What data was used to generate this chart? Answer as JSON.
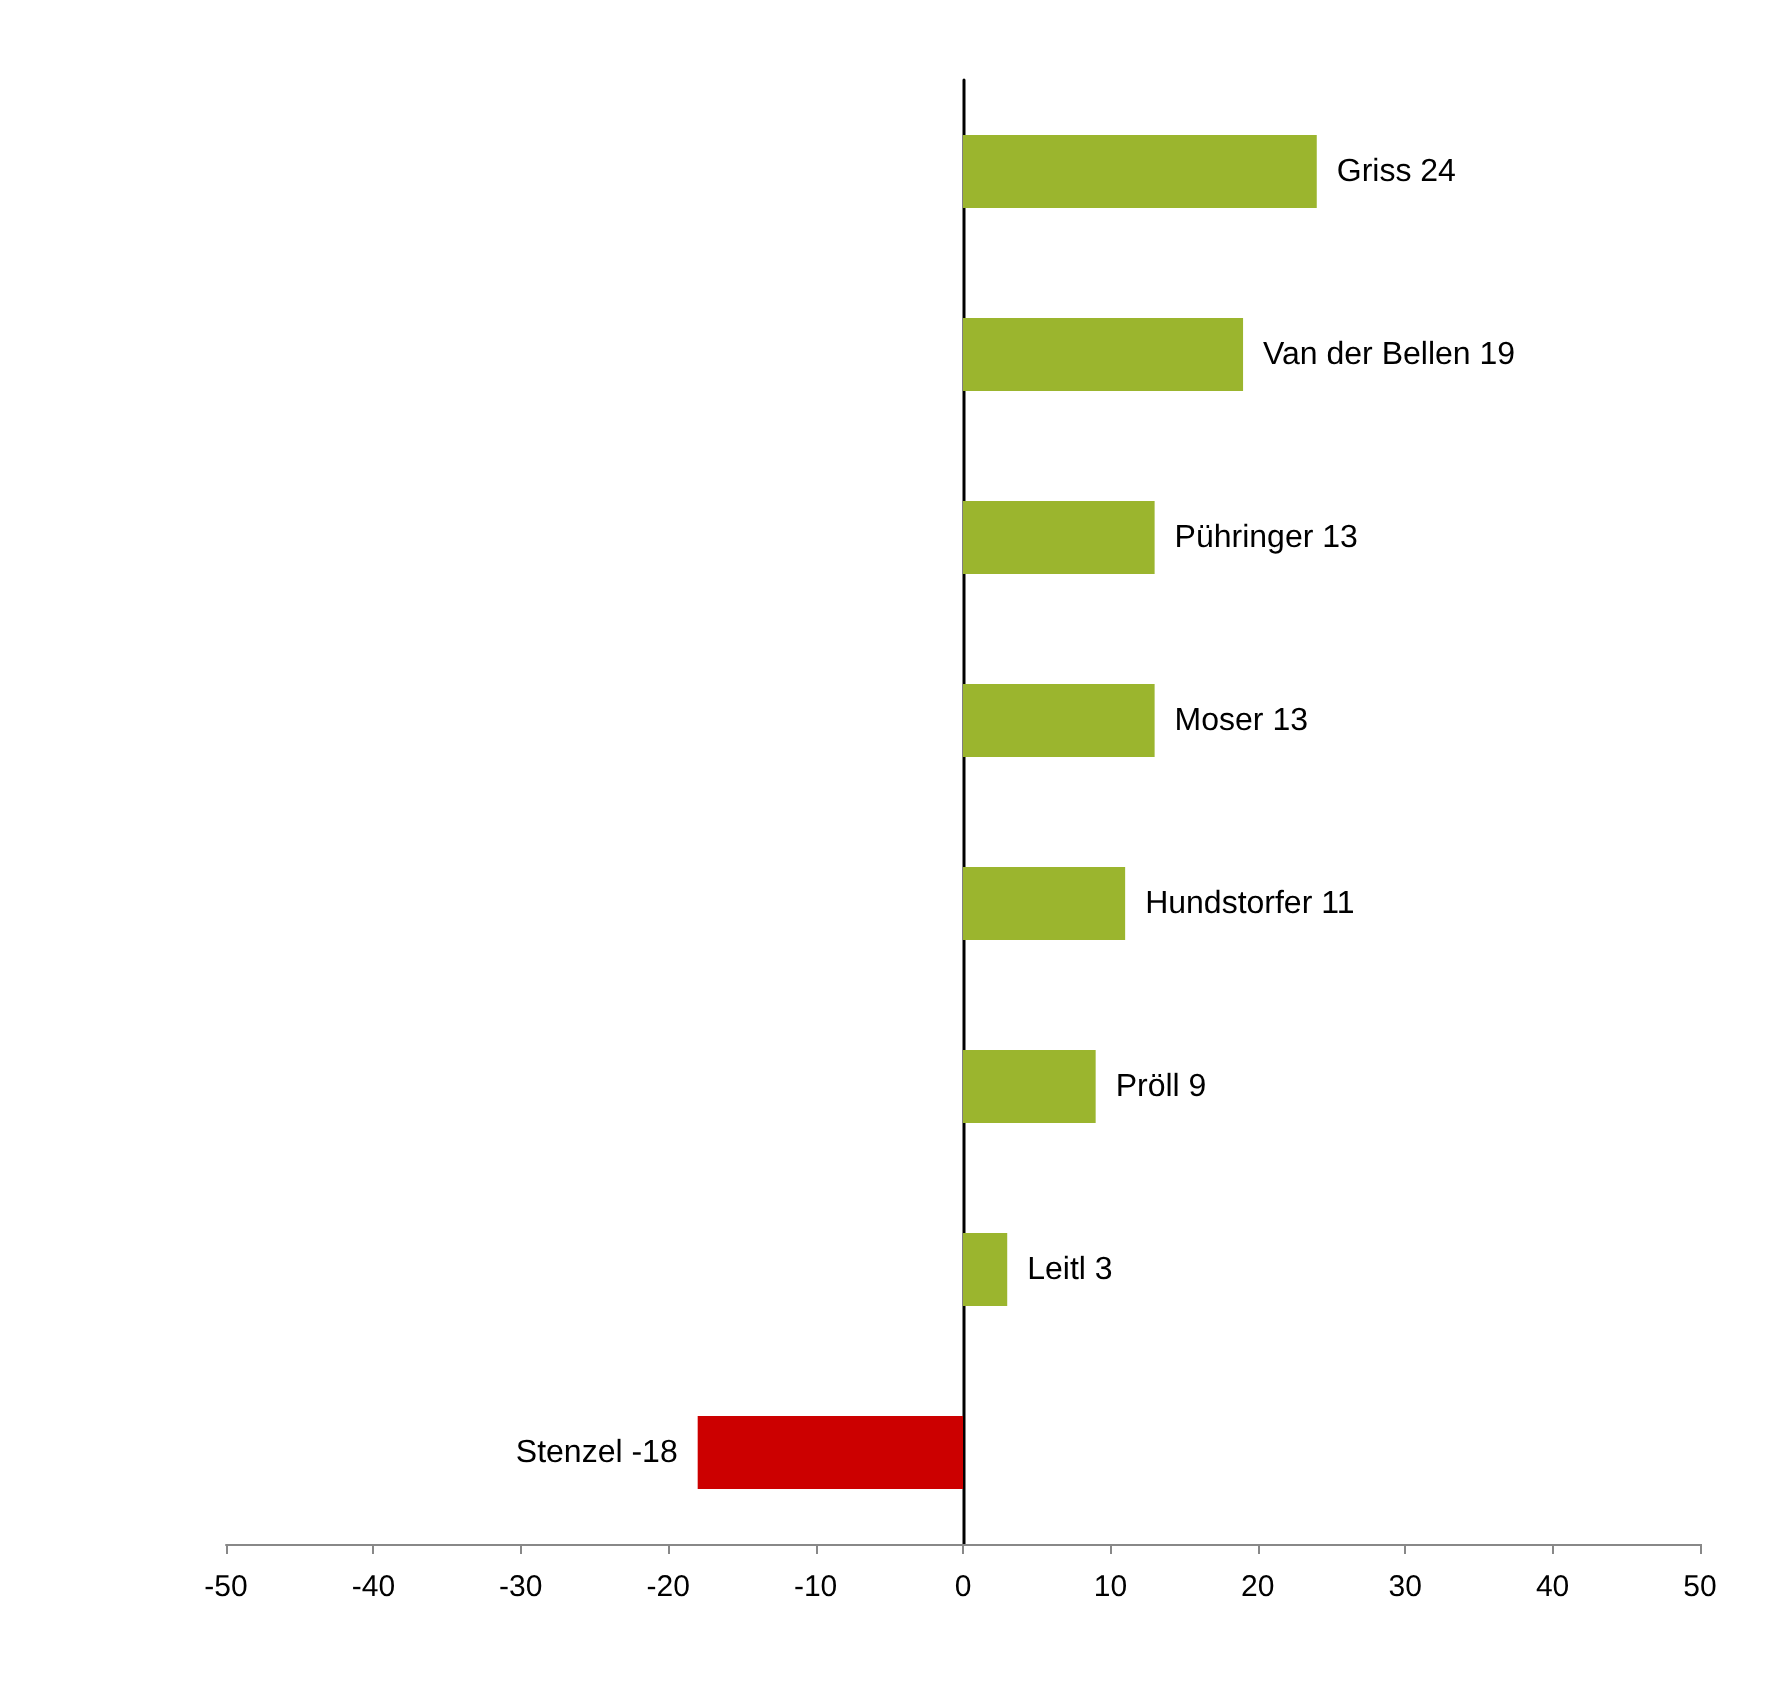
{
  "chart_data": {
    "type": "bar",
    "orientation": "horizontal",
    "categories": [
      null,
      null,
      null,
      null,
      null,
      null,
      null,
      null
    ],
    "values": [
      24,
      19,
      13,
      13,
      11,
      9,
      3,
      -18
    ],
    "colors": [
      "#9bb52e",
      "#9bb52e",
      "#9bb52e",
      "#9bb52e",
      "#9bb52e",
      "#9bb52e",
      "#9bb52e",
      "#cc0000"
    ],
    "value_labels": [
      "Griss 24",
      "Van der Bellen 19",
      "Pühringer 13",
      "Moser 13",
      "Hundstorfer 11",
      "Pröll 9",
      "Leitl 3",
      "Stenzel -18"
    ],
    "xlim": [
      -50,
      50
    ],
    "xticks": [
      -50,
      -40,
      -30,
      -20,
      -10,
      0,
      10,
      20,
      30,
      40,
      50
    ],
    "tick_labels": "x"
  }
}
